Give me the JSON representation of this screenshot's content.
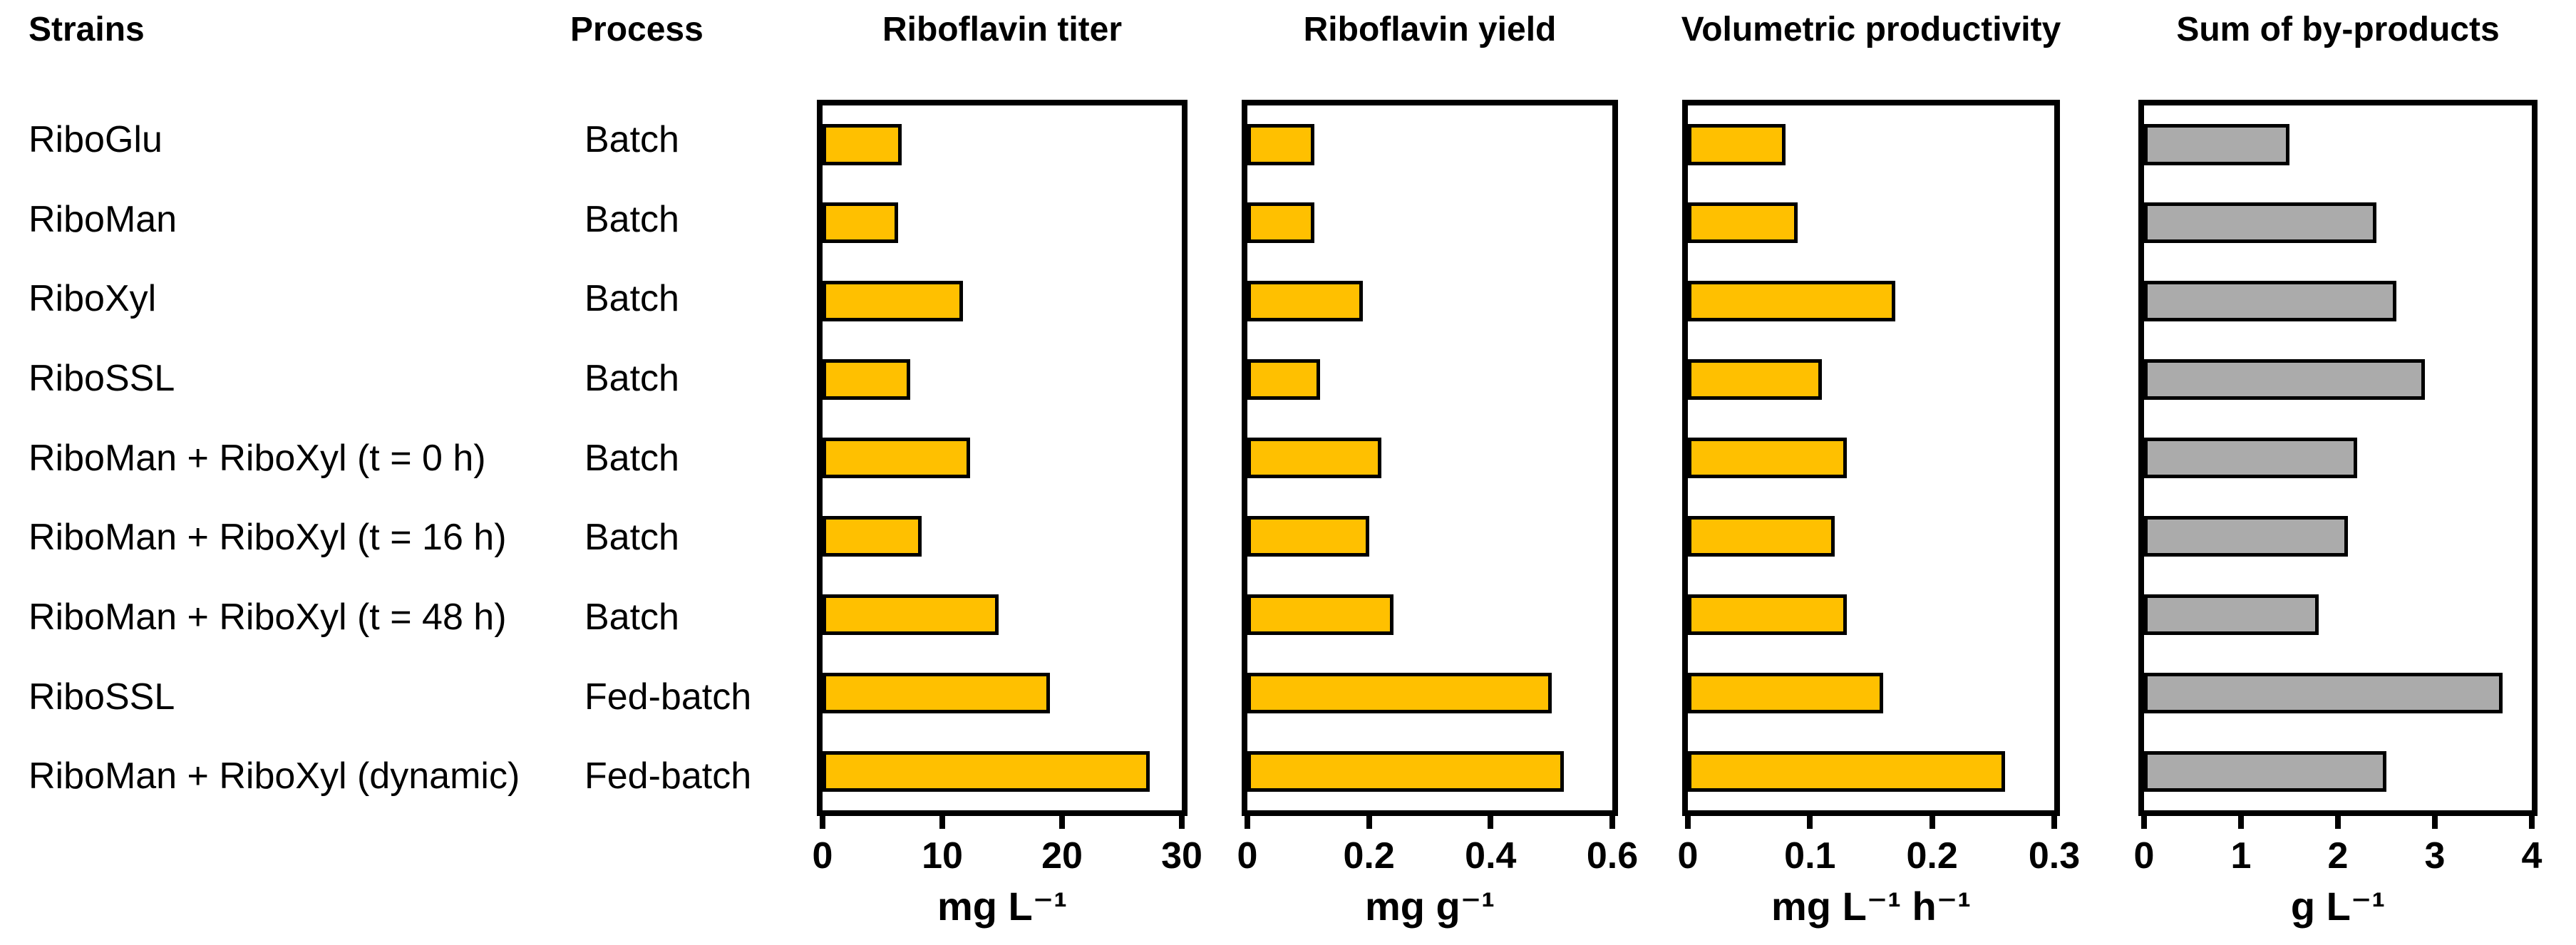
{
  "header": {
    "strains": "Strains",
    "process": "Process"
  },
  "rows": [
    {
      "strain": "RiboGlu",
      "process": "Batch"
    },
    {
      "strain": "RiboMan",
      "process": "Batch"
    },
    {
      "strain": "RiboXyl",
      "process": "Batch"
    },
    {
      "strain": "RiboSSL",
      "process": "Batch"
    },
    {
      "strain": "RiboMan + RiboXyl (t = 0 h)",
      "process": "Batch"
    },
    {
      "strain": "RiboMan + RiboXyl (t = 16 h)",
      "process": "Batch"
    },
    {
      "strain": "RiboMan + RiboXyl (t = 48 h)",
      "process": "Batch"
    },
    {
      "strain": "RiboSSL",
      "process": "Fed-batch"
    },
    {
      "strain": "RiboMan + RiboXyl (dynamic)",
      "process": "Fed-batch"
    }
  ],
  "colors": {
    "bar_yellow": "#FFC000",
    "bar_gray": "#ABABAB",
    "bar_border": "#000000"
  },
  "chart_data": [
    {
      "type": "bar",
      "orientation": "horizontal",
      "title": "Riboflavin titer",
      "xlabel": "mg L⁻¹",
      "xlim": [
        0,
        30
      ],
      "xticks": [
        "0",
        "10",
        "20",
        "30"
      ],
      "grid": false,
      "bar_color": "#FFC000",
      "categories": [
        "RiboGlu (Batch)",
        "RiboMan (Batch)",
        "RiboXyl (Batch)",
        "RiboSSL (Batch)",
        "RiboMan + RiboXyl (t = 0 h) (Batch)",
        "RiboMan + RiboXyl (t = 16 h) (Batch)",
        "RiboMan + RiboXyl (t = 48 h) (Batch)",
        "RiboSSL (Fed-batch)",
        "RiboMan + RiboXyl (dynamic) (Fed-batch)"
      ],
      "values": [
        6.6,
        6.3,
        11.7,
        7.3,
        12.3,
        8.3,
        14.7,
        19.0,
        27.3
      ]
    },
    {
      "type": "bar",
      "orientation": "horizontal",
      "title": "Riboflavin yield",
      "xlabel": "mg g⁻¹",
      "xlim": [
        0,
        0.6
      ],
      "xticks": [
        "0",
        "0.2",
        "0.4",
        "0.6"
      ],
      "grid": false,
      "bar_color": "#FFC000",
      "categories": [
        "RiboGlu (Batch)",
        "RiboMan (Batch)",
        "RiboXyl (Batch)",
        "RiboSSL (Batch)",
        "RiboMan + RiboXyl (t = 0 h) (Batch)",
        "RiboMan + RiboXyl (t = 16 h) (Batch)",
        "RiboMan + RiboXyl (t = 48 h) (Batch)",
        "RiboSSL (Fed-batch)",
        "RiboMan + RiboXyl (dynamic) (Fed-batch)"
      ],
      "values": [
        0.11,
        0.11,
        0.19,
        0.12,
        0.22,
        0.2,
        0.24,
        0.5,
        0.52
      ]
    },
    {
      "type": "bar",
      "orientation": "horizontal",
      "title": "Volumetric productivity",
      "xlabel": "mg L⁻¹ h⁻¹",
      "xlim": [
        0,
        0.3
      ],
      "xticks": [
        "0",
        "0.1",
        "0.2",
        "0.3"
      ],
      "grid": false,
      "bar_color": "#FFC000",
      "categories": [
        "RiboGlu (Batch)",
        "RiboMan (Batch)",
        "RiboXyl (Batch)",
        "RiboSSL (Batch)",
        "RiboMan + RiboXyl (t = 0 h) (Batch)",
        "RiboMan + RiboXyl (t = 16 h) (Batch)",
        "RiboMan + RiboXyl (t = 48 h) (Batch)",
        "RiboSSL (Fed-batch)",
        "RiboMan + RiboXyl (dynamic) (Fed-batch)"
      ],
      "values": [
        0.08,
        0.09,
        0.17,
        0.11,
        0.13,
        0.12,
        0.13,
        0.16,
        0.26
      ]
    },
    {
      "type": "bar",
      "orientation": "horizontal",
      "title": "Sum of by-products",
      "xlabel": "g L⁻¹",
      "xlim": [
        0,
        4
      ],
      "xticks": [
        "0",
        "1",
        "2",
        "3",
        "4"
      ],
      "grid": false,
      "bar_color": "#ABABAB",
      "categories": [
        "RiboGlu (Batch)",
        "RiboMan (Batch)",
        "RiboXyl (Batch)",
        "RiboSSL (Batch)",
        "RiboMan + RiboXyl (t = 0 h) (Batch)",
        "RiboMan + RiboXyl (t = 16 h) (Batch)",
        "RiboMan + RiboXyl (t = 48 h) (Batch)",
        "RiboSSL (Fed-batch)",
        "RiboMan + RiboXyl (dynamic) (Fed-batch)"
      ],
      "values": [
        1.5,
        2.4,
        2.6,
        2.9,
        2.2,
        2.1,
        1.8,
        3.7,
        2.5
      ]
    }
  ]
}
